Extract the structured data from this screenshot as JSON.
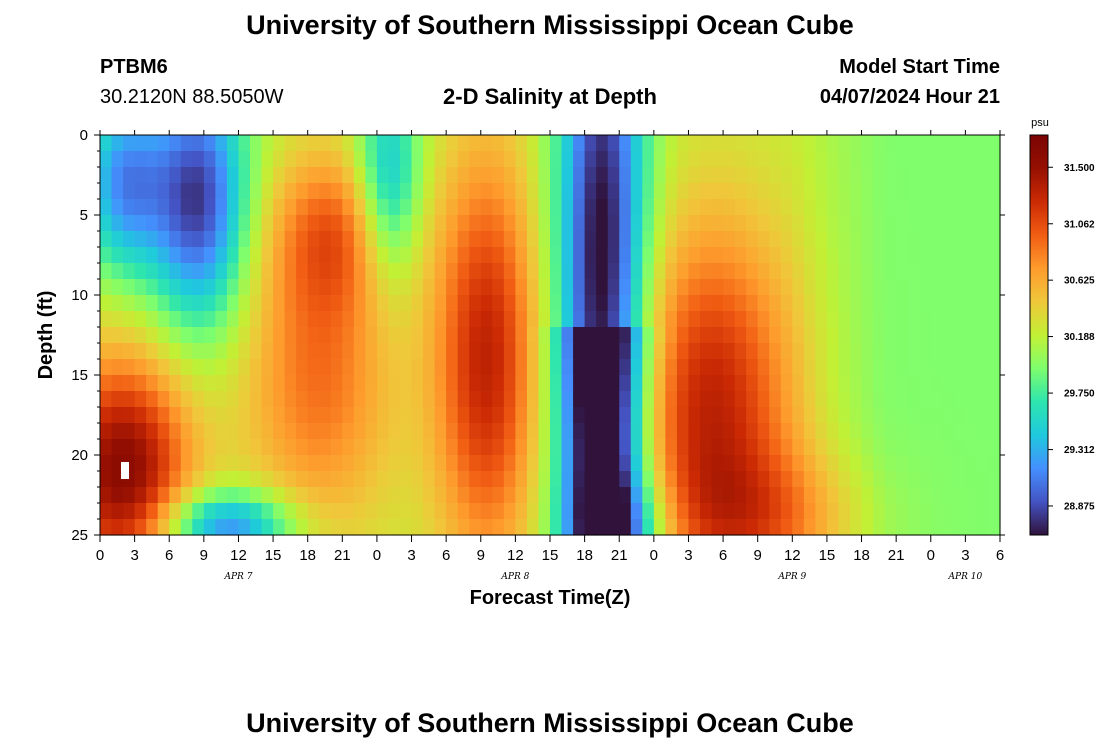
{
  "header": {
    "title": "University of Southern Mississippi Ocean Cube",
    "station": "PTBM6",
    "coords": "30.2120N  88.5050W",
    "subtitle": "2-D Salinity at Depth",
    "model_start_label": "Model Start Time",
    "model_start_value": "04/07/2024 Hour 21"
  },
  "footer": {
    "title": "University of Southern Mississippi Ocean Cube"
  },
  "chart_data": {
    "type": "heatmap",
    "title": "2-D Salinity at Depth",
    "xlabel": "Forecast Time(Z)",
    "ylabel": "Depth (ft)",
    "x_range_hours": [
      0,
      78
    ],
    "y_range_ft": [
      0,
      25
    ],
    "x_tick_labels": [
      "0",
      "3",
      "6",
      "9",
      "12",
      "15",
      "18",
      "21",
      "0",
      "3",
      "6",
      "9",
      "12",
      "15",
      "18",
      "21",
      "0",
      "3",
      "6",
      "9",
      "12",
      "15",
      "18",
      "21",
      "0",
      "3",
      "6"
    ],
    "y_tick_labels": [
      "0",
      "5",
      "10",
      "15",
      "20",
      "25"
    ],
    "date_labels": [
      {
        "text": "APR 7",
        "hour": 12
      },
      {
        "text": "APR 8",
        "hour": 36
      },
      {
        "text": "APR 9",
        "hour": 60
      },
      {
        "text": "APR 10",
        "hour": 75
      }
    ],
    "colorbar": {
      "unit": "psu",
      "range": [
        28.65,
        31.75
      ],
      "tick_values": [
        28.875,
        29.312,
        29.75,
        30.188,
        30.625,
        31.062,
        31.5
      ],
      "tick_labels": [
        "28.875",
        "29.312",
        "29.750",
        "30.188",
        "30.625",
        "31.062",
        "31.500"
      ],
      "colors": [
        "#30123b",
        "#4454c4",
        "#4490fe",
        "#1fc9dd",
        "#2ee5ae",
        "#7ffe6d",
        "#c2f034",
        "#f0c73a",
        "#fe9b2d",
        "#f15d13",
        "#cb2a04",
        "#961002",
        "#7a0403"
      ]
    },
    "grid_cols": 78,
    "grid_rows": 25,
    "features": {
      "background_psu": 30.2,
      "fresh_cores": [
        {
          "hour": 8.5,
          "depth_ft": 4,
          "hour_sigma": 3.0,
          "depth_sigma": 5.5,
          "delta_psu": -1.4
        },
        {
          "hour": 2,
          "depth_ft": 3,
          "hour_sigma": 2.5,
          "depth_sigma": 4.0,
          "delta_psu": -1.0
        },
        {
          "hour": 25,
          "depth_ft": 3,
          "hour_sigma": 2.0,
          "depth_sigma": 4.5,
          "delta_psu": -0.9
        },
        {
          "hour": 20.5,
          "depth_ft": 6,
          "hour_sigma": 4.0,
          "depth_sigma": 3.5,
          "delta_psu": 0.6
        },
        {
          "hour": 43.5,
          "depth_ft": 9,
          "hour_sigma": 2.8,
          "depth_sigma": 14,
          "delta_psu": -1.35
        },
        {
          "hour": 45.5,
          "depth_ft": 24.5,
          "hour_sigma": 3.0,
          "depth_sigma": 2.5,
          "delta_psu": -0.6
        },
        {
          "hour": 11,
          "depth_ft": 24.5,
          "hour_sigma": 4.0,
          "depth_sigma": 1.6,
          "delta_psu": -1.1
        }
      ],
      "salty_cores": [
        {
          "hour": 2,
          "depth_ft": 21,
          "hour_sigma": 4.0,
          "depth_sigma": 5.0,
          "delta_psu": 1.4
        },
        {
          "hour": 19,
          "depth_ft": 15,
          "hour_sigma": 4.5,
          "depth_sigma": 7.0,
          "delta_psu": 0.7
        },
        {
          "hour": 33.5,
          "depth_ft": 14,
          "hour_sigma": 3.2,
          "depth_sigma": 9.0,
          "delta_psu": 1.1
        },
        {
          "hour": 53,
          "depth_ft": 17,
          "hour_sigma": 5.0,
          "depth_sigma": 8.0,
          "delta_psu": 1.1
        },
        {
          "hour": 58,
          "depth_ft": 24,
          "hour_sigma": 6.0,
          "depth_sigma": 3.0,
          "delta_psu": 0.5
        }
      ]
    }
  }
}
